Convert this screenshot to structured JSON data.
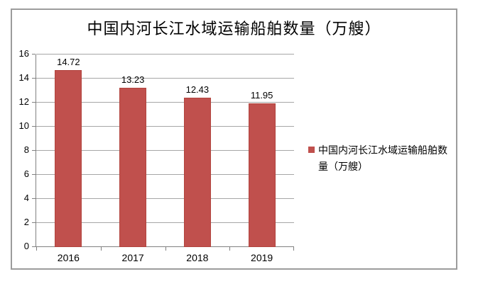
{
  "chart": {
    "title": "中国内河长江水域运输船舶数量（万艘）",
    "legend": {
      "label": "中国内河长江水域运输船舶数量（万艘）"
    }
  },
  "chart_data": {
    "type": "bar",
    "title": "中国内河长江水域运输船舶数量（万艘）",
    "categories": [
      "2016",
      "2017",
      "2018",
      "2019"
    ],
    "values": [
      14.72,
      13.23,
      12.43,
      11.95
    ],
    "series_name": "中国内河长江水域运输船舶数量（万艘）",
    "xlabel": "",
    "ylabel": "",
    "ylim": [
      0,
      16
    ],
    "ytick_step": 2,
    "ytick_labels": [
      "0",
      "2",
      "4",
      "6",
      "8",
      "10",
      "12",
      "14",
      "16"
    ],
    "data_labels": [
      "14.72",
      "13.23",
      "12.43",
      "11.95"
    ],
    "grid": true,
    "legend_position": "right",
    "colors": {
      "bar_fill": "#c0504d",
      "bar_edge": "#b2453f",
      "gridline": "#a6a6a6",
      "axis": "#808080",
      "frame_border": "#9c9c9c",
      "text": "#000000"
    }
  }
}
